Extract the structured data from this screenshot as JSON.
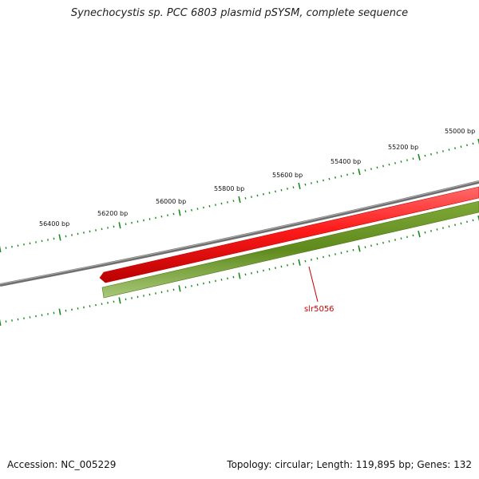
{
  "title": "Synechocystis sp. PCC 6803 plasmid pSYSM, complete sequence",
  "footer": {
    "accession": "Accession: NC_005229",
    "summary": "Topology: circular; Length: 119,895 bp; Genes: 132"
  },
  "outer_ticks": [
    "55000 bp",
    "55200 bp",
    "55400 bp",
    "55600 bp",
    "55800 bp",
    "56000 bp",
    "56200 bp",
    "56400 bp"
  ],
  "gene_label": "slr5056",
  "colors": {
    "backbone": "#808080",
    "forward_strand_gene": "#ff0000",
    "reverse_strand_gene": "#669922",
    "tick_marks": "#1a8a1a",
    "gene_label": "#cc0000"
  }
}
